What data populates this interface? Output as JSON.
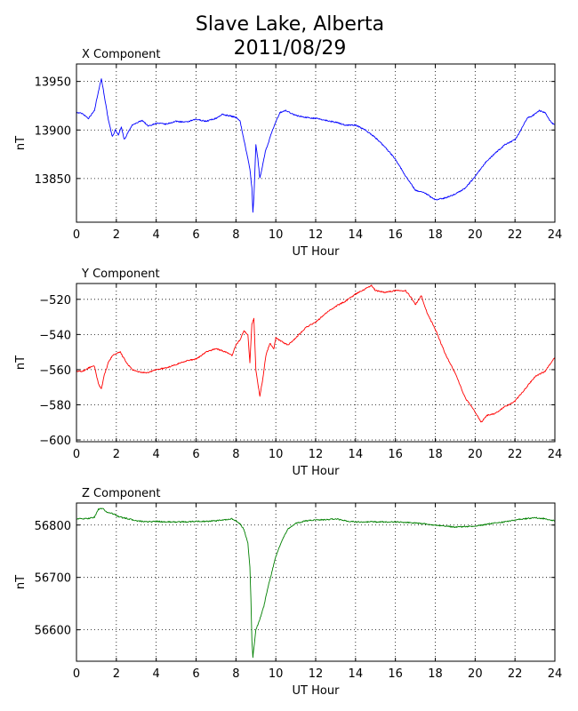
{
  "figure_title_line1": "Slave Lake, Alberta",
  "figure_title_line2": "2011/08/29",
  "chart_data": [
    {
      "type": "line",
      "title": "X Component",
      "xlabel": "UT Hour",
      "ylabel": "nT",
      "xlim": [
        0,
        24
      ],
      "ylim": [
        13805,
        13968
      ],
      "xticks": [
        0,
        2,
        4,
        6,
        8,
        10,
        12,
        14,
        16,
        18,
        20,
        22,
        24
      ],
      "yticks": [
        13850,
        13900,
        13950
      ],
      "grid": true,
      "color": "#0000ff",
      "series": [
        {
          "x": [
            0,
            0.3,
            0.6,
            0.9,
            1.1,
            1.25,
            1.4,
            1.6,
            1.8,
            1.95,
            2.1,
            2.25,
            2.4,
            2.6,
            2.8,
            3.0,
            3.3,
            3.6,
            4.0,
            4.5,
            5.0,
            5.5,
            6.0,
            6.5,
            7.0,
            7.3,
            7.6,
            8.0,
            8.2,
            8.35,
            8.5,
            8.6,
            8.7,
            8.8,
            8.85,
            8.9,
            9.0,
            9.1,
            9.2,
            9.3,
            9.4,
            9.5,
            9.6,
            9.8,
            10.0,
            10.2,
            10.5,
            11.0,
            11.5,
            12.0,
            12.5,
            13.0,
            13.5,
            14.0,
            14.5,
            15.0,
            15.5,
            16.0,
            16.5,
            17.0,
            17.5,
            18.0,
            18.5,
            19.0,
            19.5,
            20.0,
            20.5,
            21.0,
            21.5,
            22.0,
            22.3,
            22.6,
            22.9,
            23.2,
            23.5,
            23.8,
            24.0
          ],
          "y": [
            13918,
            13917,
            13912,
            13920,
            13940,
            13953,
            13935,
            13910,
            13893,
            13900,
            13895,
            13903,
            13890,
            13898,
            13905,
            13907,
            13910,
            13904,
            13907,
            13906,
            13909,
            13908,
            13911,
            13909,
            13912,
            13916,
            13915,
            13913,
            13910,
            13895,
            13880,
            13870,
            13860,
            13840,
            13815,
            13830,
            13885,
            13870,
            13850,
            13860,
            13870,
            13880,
            13885,
            13898,
            13908,
            13918,
            13920,
            13915,
            13913,
            13912,
            13910,
            13908,
            13905,
            13905,
            13900,
            13892,
            13882,
            13870,
            13853,
            13838,
            13835,
            13828,
            13830,
            13834,
            13840,
            13852,
            13866,
            13876,
            13885,
            13890,
            13900,
            13912,
            13915,
            13920,
            13918,
            13908,
            13905
          ]
        }
      ]
    },
    {
      "type": "line",
      "title": "Y Component",
      "xlabel": "UT Hour",
      "ylabel": "nT",
      "xlim": [
        0,
        24
      ],
      "ylim": [
        -601,
        -511
      ],
      "xticks": [
        0,
        2,
        4,
        6,
        8,
        10,
        12,
        14,
        16,
        18,
        20,
        22,
        24
      ],
      "yticks": [
        -600,
        -580,
        -560,
        -540,
        -520
      ],
      "grid": true,
      "color": "#ff0000",
      "series": [
        {
          "x": [
            0,
            0.3,
            0.6,
            0.9,
            1.1,
            1.25,
            1.4,
            1.6,
            1.8,
            2.0,
            2.2,
            2.5,
            2.8,
            3.0,
            3.5,
            4.0,
            4.5,
            5.0,
            5.5,
            6.0,
            6.5,
            7.0,
            7.5,
            7.8,
            8.0,
            8.2,
            8.4,
            8.6,
            8.7,
            8.8,
            8.9,
            9.0,
            9.1,
            9.2,
            9.35,
            9.5,
            9.7,
            9.9,
            10.0,
            10.3,
            10.6,
            11.0,
            11.5,
            12.0,
            12.5,
            13.0,
            13.5,
            14.0,
            14.5,
            14.8,
            15.0,
            15.5,
            16.0,
            16.5,
            16.8,
            17.0,
            17.3,
            17.6,
            18.0,
            18.5,
            19.0,
            19.5,
            20.0,
            20.3,
            20.6,
            21.0,
            21.5,
            22.0,
            22.5,
            23.0,
            23.5,
            24.0
          ],
          "y": [
            -561,
            -561,
            -559,
            -558,
            -568,
            -571,
            -563,
            -556,
            -552,
            -551,
            -550,
            -556,
            -560,
            -561,
            -562,
            -560,
            -559,
            -557,
            -555,
            -554,
            -550,
            -548,
            -550,
            -552,
            -546,
            -543,
            -538,
            -540,
            -556,
            -534,
            -531,
            -560,
            -568,
            -575,
            -565,
            -552,
            -545,
            -548,
            -542,
            -544,
            -546,
            -542,
            -536,
            -533,
            -528,
            -524,
            -521,
            -517,
            -514,
            -512,
            -515,
            -516,
            -515,
            -515,
            -519,
            -523,
            -518,
            -528,
            -537,
            -551,
            -562,
            -576,
            -584,
            -590,
            -586,
            -585,
            -581,
            -578,
            -571,
            -564,
            -561,
            -553
          ]
        }
      ]
    },
    {
      "type": "line",
      "title": "Z Component",
      "xlabel": "UT Hour",
      "ylabel": "nT",
      "xlim": [
        0,
        24
      ],
      "ylim": [
        56540,
        56842
      ],
      "xticks": [
        0,
        2,
        4,
        6,
        8,
        10,
        12,
        14,
        16,
        18,
        20,
        22,
        24
      ],
      "yticks": [
        56600,
        56700,
        56800
      ],
      "grid": true,
      "color": "#008000",
      "series": [
        {
          "x": [
            0,
            0.5,
            0.9,
            1.1,
            1.3,
            1.5,
            1.8,
            2.2,
            2.6,
            3.0,
            3.5,
            4.0,
            4.5,
            5.0,
            5.5,
            6.0,
            6.5,
            7.0,
            7.5,
            7.8,
            8.0,
            8.2,
            8.4,
            8.6,
            8.7,
            8.75,
            8.8,
            8.85,
            8.9,
            9.0,
            9.2,
            9.4,
            9.6,
            9.8,
            10.0,
            10.3,
            10.6,
            11.0,
            11.5,
            12.0,
            12.5,
            13.0,
            13.5,
            14.0,
            15.0,
            16.0,
            17.0,
            18.0,
            19.0,
            20.0,
            20.5,
            21.0,
            21.5,
            22.0,
            22.5,
            23.0,
            23.5,
            24.0
          ],
          "y": [
            56812,
            56812,
            56815,
            56830,
            56832,
            56825,
            56822,
            56815,
            56812,
            56808,
            56806,
            56807,
            56806,
            56806,
            56806,
            56807,
            56807,
            56808,
            56810,
            56812,
            56808,
            56802,
            56792,
            56765,
            56720,
            56660,
            56580,
            56548,
            56565,
            56600,
            56620,
            56645,
            56680,
            56710,
            56740,
            56770,
            56792,
            56803,
            56808,
            56810,
            56810,
            56812,
            56808,
            56806,
            56806,
            56806,
            56804,
            56800,
            56796,
            56798,
            56801,
            56804,
            56806,
            56810,
            56812,
            56814,
            56812,
            56808
          ]
        }
      ]
    }
  ]
}
